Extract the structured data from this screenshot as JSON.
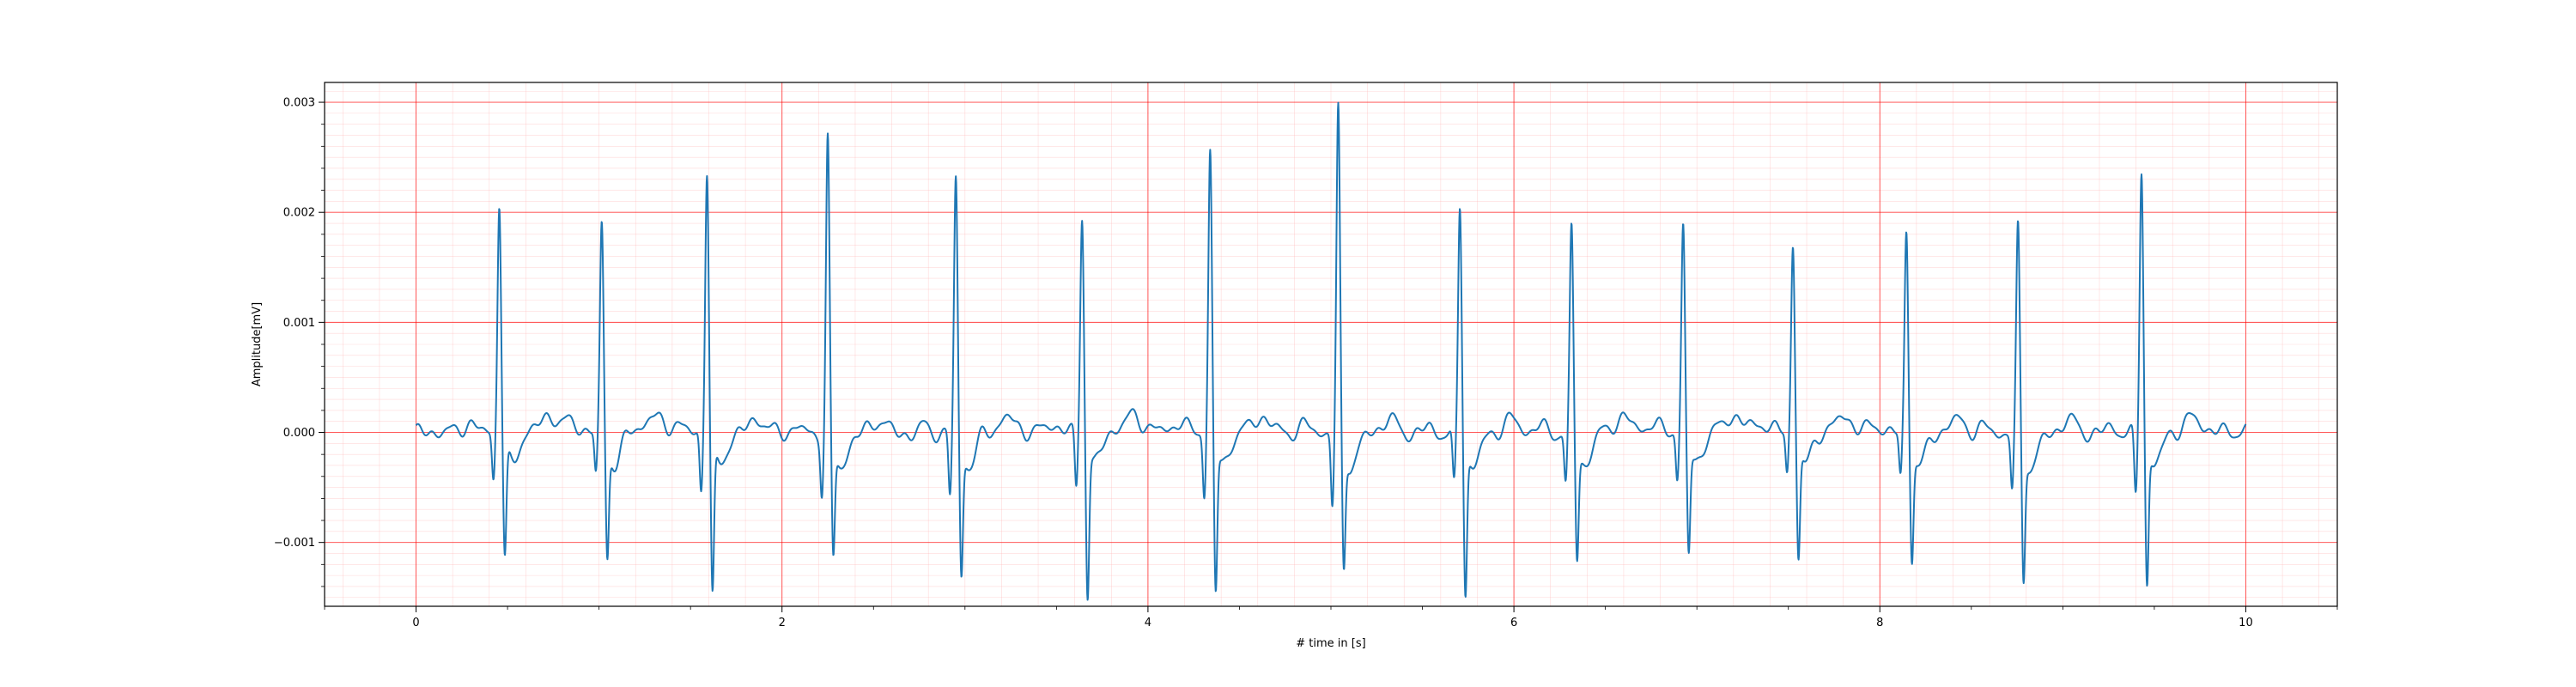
{
  "chart_data": {
    "type": "line",
    "title": "",
    "xlabel": "# time in [s]",
    "ylabel": "Amplitude[mV]",
    "xlim": [
      -0.5,
      10.5
    ],
    "ylim": [
      -0.00158,
      0.00318
    ],
    "x_ticks": [
      0,
      2,
      4,
      6,
      8,
      10
    ],
    "x_tick_labels": [
      "0",
      "2",
      "4",
      "6",
      "8",
      "10"
    ],
    "y_ticks": [
      -0.001,
      0.0,
      0.001,
      0.002,
      0.003
    ],
    "y_tick_labels": [
      "−0.001",
      "0.000",
      "0.001",
      "0.002",
      "0.003"
    ],
    "grid": {
      "major": true,
      "minor": true,
      "major_color": "#ff0000",
      "minor_color": "#ffb3b3",
      "major_x_step": 2,
      "major_y_step": 0.001,
      "minor_x_step": 0.2,
      "minor_y_step": 0.0001
    },
    "legend": "none",
    "series": [
      {
        "color": "#1f77b4",
        "beats": [
          {
            "t": 0.455,
            "r": 0.00212,
            "q": -0.00043,
            "s": -0.00102
          },
          {
            "t": 1.015,
            "r": 0.0019,
            "q": -0.0004,
            "s": -0.00101
          },
          {
            "t": 1.59,
            "r": 0.00243,
            "q": -0.00053,
            "s": -0.00136
          },
          {
            "t": 2.25,
            "r": 0.00272,
            "q": -0.0005,
            "s": -0.001
          },
          {
            "t": 2.95,
            "r": 0.00235,
            "q": -0.00056,
            "s": -0.00115
          },
          {
            "t": 3.64,
            "r": 0.002,
            "q": -0.00052,
            "s": -0.00134
          },
          {
            "t": 4.34,
            "r": 0.00256,
            "q": -0.00058,
            "s": -0.00133
          },
          {
            "t": 5.04,
            "r": 0.00297,
            "q": -0.00067,
            "s": -0.00108
          },
          {
            "t": 5.705,
            "r": 0.00213,
            "q": -0.00048,
            "s": -0.00129
          },
          {
            "t": 6.315,
            "r": 0.0019,
            "q": -0.00047,
            "s": -0.00099
          },
          {
            "t": 6.925,
            "r": 0.0019,
            "q": -0.00043,
            "s": -0.00098
          },
          {
            "t": 7.525,
            "r": 0.00174,
            "q": -0.00038,
            "s": -0.00101
          },
          {
            "t": 8.145,
            "r": 0.00187,
            "q": -0.0004,
            "s": -0.00098
          },
          {
            "t": 8.755,
            "r": 0.00191,
            "q": -0.0005,
            "s": -0.00116
          },
          {
            "t": 9.43,
            "r": 0.00246,
            "q": -0.00058,
            "s": -0.00123
          }
        ]
      }
    ]
  }
}
